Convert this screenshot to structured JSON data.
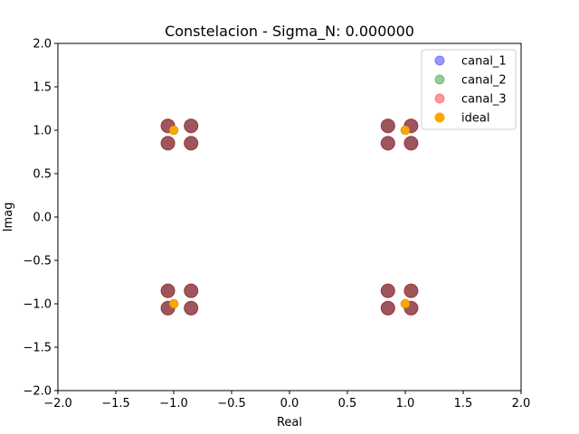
{
  "chart_data": {
    "type": "scatter",
    "title": "Constelacion - Sigma_N: 0.000000",
    "xlabel": "Real",
    "ylabel": "Imag",
    "xlim": [
      -2.0,
      2.0
    ],
    "ylim": [
      -2.0,
      2.0
    ],
    "xticks": [
      -2.0,
      -1.5,
      -1.0,
      -0.5,
      0.0,
      0.5,
      1.0,
      1.5,
      2.0
    ],
    "yticks": [
      -2.0,
      -1.5,
      -1.0,
      -0.5,
      0.0,
      0.5,
      1.0,
      1.5,
      2.0
    ],
    "xtick_labels": [
      "−2.0",
      "−1.5",
      "−1.0",
      "−0.5",
      "0.0",
      "0.5",
      "1.0",
      "1.5",
      "2.0"
    ],
    "ytick_labels": [
      "−2.0",
      "−1.5",
      "−1.0",
      "−0.5",
      "0.0",
      "0.5",
      "1.0",
      "1.5",
      "2.0"
    ],
    "grid": false,
    "legend_position": "top-right",
    "series": [
      {
        "name": "canal_1",
        "color": "#0000ff",
        "alpha": 0.4,
        "x": [
          -1.05,
          -0.85,
          -1.05,
          -0.85,
          0.85,
          1.05,
          0.85,
          1.05,
          -1.05,
          -0.85,
          -1.05,
          -0.85,
          0.85,
          1.05,
          0.85,
          1.05
        ],
        "y": [
          1.05,
          1.05,
          0.85,
          0.85,
          1.05,
          1.05,
          0.85,
          0.85,
          -0.85,
          -0.85,
          -1.05,
          -1.05,
          -0.85,
          -0.85,
          -1.05,
          -1.05
        ]
      },
      {
        "name": "canal_2",
        "color": "#008000",
        "alpha": 0.4,
        "x": [
          -1.05,
          -0.85,
          -1.05,
          -0.85,
          0.85,
          1.05,
          0.85,
          1.05,
          -1.05,
          -0.85,
          -1.05,
          -0.85,
          0.85,
          1.05,
          0.85,
          1.05
        ],
        "y": [
          1.05,
          1.05,
          0.85,
          0.85,
          1.05,
          1.05,
          0.85,
          0.85,
          -0.85,
          -0.85,
          -1.05,
          -1.05,
          -0.85,
          -0.85,
          -1.05,
          -1.05
        ]
      },
      {
        "name": "canal_3",
        "color": "#ff0000",
        "alpha": 0.4,
        "x": [
          -1.05,
          -0.85,
          -1.05,
          -0.85,
          0.85,
          1.05,
          0.85,
          1.05,
          -1.05,
          -0.85,
          -1.05,
          -0.85,
          0.85,
          1.05,
          0.85,
          1.05
        ],
        "y": [
          1.05,
          1.05,
          0.85,
          0.85,
          1.05,
          1.05,
          0.85,
          0.85,
          -0.85,
          -0.85,
          -1.05,
          -1.05,
          -0.85,
          -0.85,
          -1.05,
          -1.05
        ]
      },
      {
        "name": "ideal",
        "color": "#ffa500",
        "alpha": 1.0,
        "x": [
          -1.0,
          1.0,
          -1.0,
          1.0
        ],
        "y": [
          1.0,
          1.0,
          -1.0,
          -1.0
        ]
      }
    ]
  }
}
